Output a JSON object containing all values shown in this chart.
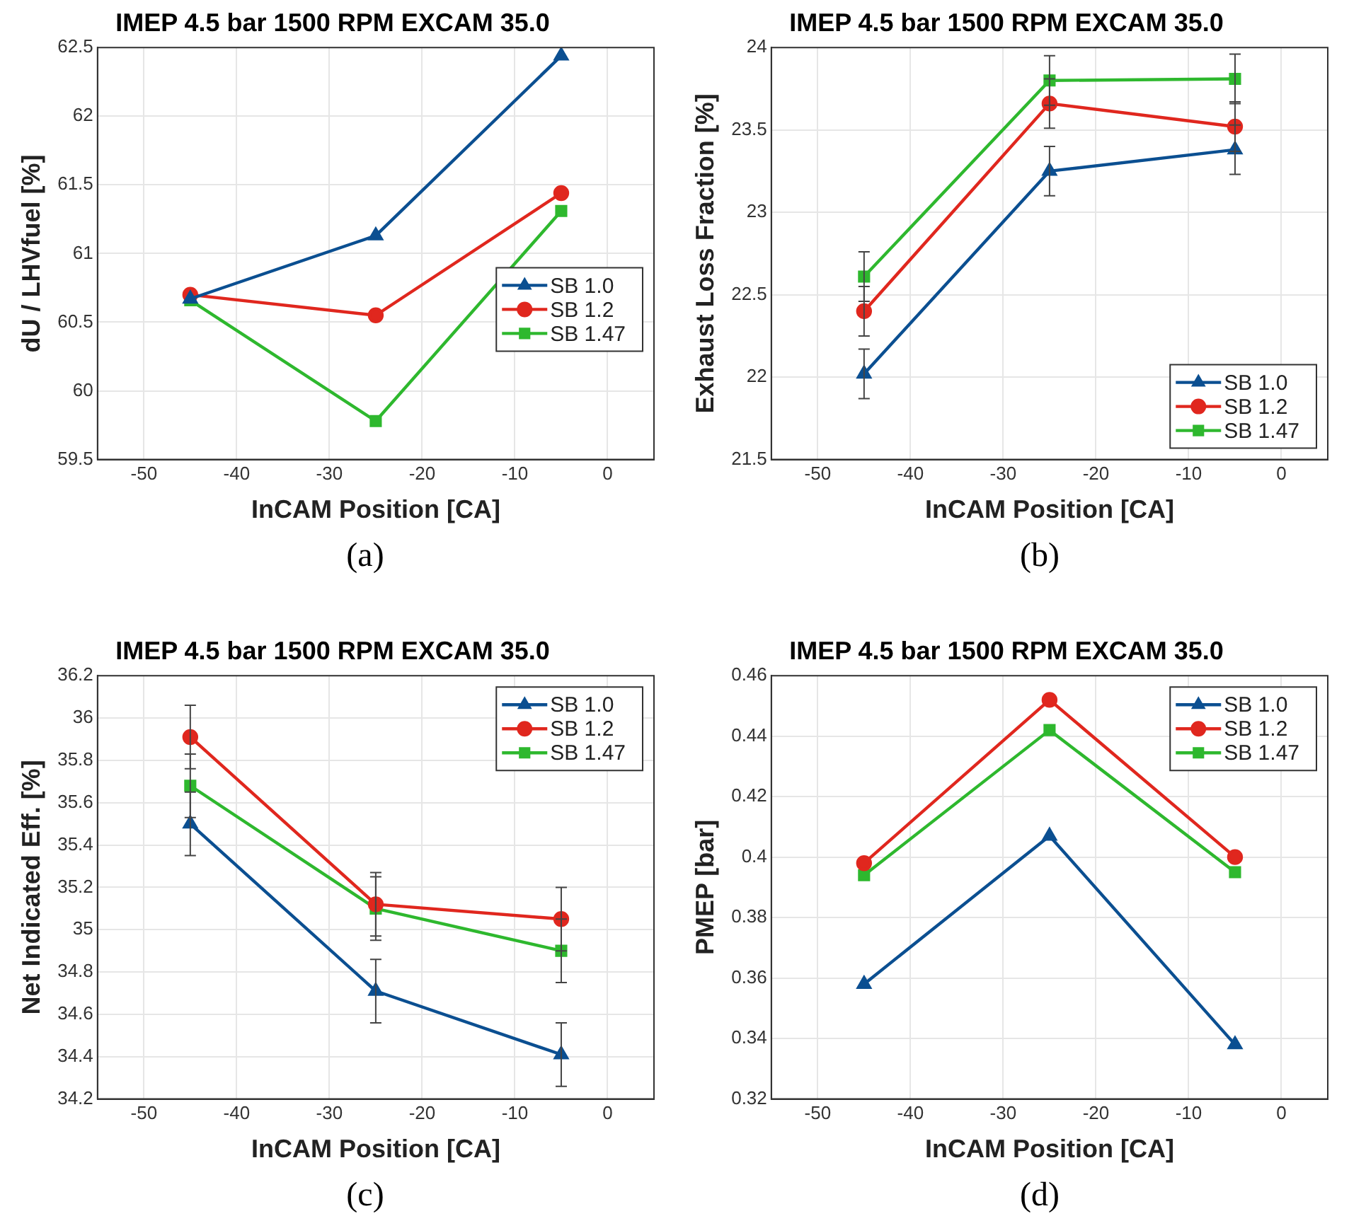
{
  "chart_data": [
    {
      "type": "line",
      "title": "IMEP 4.5 bar 1500 RPM EXCAM 35.0",
      "xlabel": "InCAM Position [CA]",
      "ylabel": "dU / LHVfuel [%]",
      "annotations": [
        "(a)"
      ],
      "x": [
        -45,
        -25,
        -5
      ],
      "xlim": [
        -55,
        5
      ],
      "xticks": [
        -50,
        -40,
        -30,
        -20,
        -10,
        0
      ],
      "ylim": [
        59.5,
        62.5
      ],
      "yticks": [
        59.5,
        60,
        60.5,
        61,
        61.5,
        62,
        62.5
      ],
      "grid": true,
      "legend": "right",
      "series": [
        {
          "name": "SB 1.0",
          "color": "#0b4f91",
          "marker": "triangle",
          "values": [
            60.67,
            61.13,
            62.44
          ]
        },
        {
          "name": "SB 1.2",
          "color": "#e0271e",
          "marker": "circle",
          "values": [
            60.7,
            60.55,
            61.44
          ]
        },
        {
          "name": "SB 1.47",
          "color": "#2eb82e",
          "marker": "square",
          "values": [
            60.66,
            59.78,
            61.31
          ]
        }
      ]
    },
    {
      "type": "line",
      "title": "IMEP 4.5 bar 1500 RPM EXCAM 35.0",
      "xlabel": "InCAM Position [CA]",
      "ylabel": "Exhaust Loss Fraction [%]",
      "annotations": [
        "(b)"
      ],
      "x": [
        -45,
        -25,
        -5
      ],
      "xlim": [
        -55,
        5
      ],
      "xticks": [
        -50,
        -40,
        -30,
        -20,
        -10,
        0
      ],
      "ylim": [
        21.5,
        24
      ],
      "yticks": [
        21.5,
        22,
        22.5,
        23,
        23.5,
        24
      ],
      "grid": true,
      "legend": "bottom right",
      "series": [
        {
          "name": "SB 1.0",
          "color": "#0b4f91",
          "marker": "triangle",
          "values": [
            22.02,
            23.25,
            23.38
          ],
          "errors": [
            0.15,
            0.15,
            0.15
          ]
        },
        {
          "name": "SB 1.2",
          "color": "#e0271e",
          "marker": "circle",
          "values": [
            22.4,
            23.66,
            23.52
          ],
          "errors": [
            0.15,
            0.15,
            0.15
          ]
        },
        {
          "name": "SB 1.47",
          "color": "#2eb82e",
          "marker": "square",
          "values": [
            22.61,
            23.8,
            23.81
          ],
          "errors": [
            0.15,
            0.15,
            0.15
          ]
        }
      ]
    },
    {
      "type": "line",
      "title": "IMEP 4.5 bar 1500 RPM EXCAM 35.0",
      "xlabel": "InCAM Position [CA]",
      "ylabel": "Net Indicated Eff. [%]",
      "annotations": [
        "(c)"
      ],
      "x": [
        -45,
        -25,
        -5
      ],
      "xlim": [
        -55,
        5
      ],
      "xticks": [
        -50,
        -40,
        -30,
        -20,
        -10,
        0
      ],
      "ylim": [
        34.2,
        36.2
      ],
      "yticks": [
        34.2,
        34.4,
        34.6,
        34.8,
        35,
        35.2,
        35.4,
        35.6,
        35.8,
        36,
        36.2
      ],
      "grid": true,
      "legend": "top right",
      "series": [
        {
          "name": "SB 1.0",
          "color": "#0b4f91",
          "marker": "triangle",
          "values": [
            35.5,
            34.71,
            34.41
          ],
          "errors": [
            0.15,
            0.15,
            0.15
          ]
        },
        {
          "name": "SB 1.2",
          "color": "#e0271e",
          "marker": "circle",
          "values": [
            35.91,
            35.12,
            35.05
          ],
          "errors": [
            0.15,
            0.15,
            0.15
          ]
        },
        {
          "name": "SB 1.47",
          "color": "#2eb82e",
          "marker": "square",
          "values": [
            35.68,
            35.1,
            34.9
          ],
          "errors": [
            0.15,
            0.15,
            0.15
          ]
        }
      ]
    },
    {
      "type": "line",
      "title": "IMEP 4.5 bar 1500 RPM EXCAM 35.0",
      "xlabel": "InCAM Position [CA]",
      "ylabel": "PMEP [bar]",
      "annotations": [
        "(d)"
      ],
      "x": [
        -45,
        -25,
        -5
      ],
      "xlim": [
        -55,
        5
      ],
      "xticks": [
        -50,
        -40,
        -30,
        -20,
        -10,
        0
      ],
      "ylim": [
        0.32,
        0.46
      ],
      "yticks": [
        0.32,
        0.34,
        0.36,
        0.38,
        0.4,
        0.42,
        0.44,
        0.46
      ],
      "grid": true,
      "legend": "top right",
      "series": [
        {
          "name": "SB 1.0",
          "color": "#0b4f91",
          "marker": "triangle",
          "values": [
            0.358,
            0.407,
            0.338
          ]
        },
        {
          "name": "SB 1.2",
          "color": "#e0271e",
          "marker": "circle",
          "values": [
            0.398,
            0.452,
            0.4
          ]
        },
        {
          "name": "SB 1.47",
          "color": "#2eb82e",
          "marker": "square",
          "values": [
            0.394,
            0.442,
            0.395
          ]
        }
      ]
    }
  ]
}
